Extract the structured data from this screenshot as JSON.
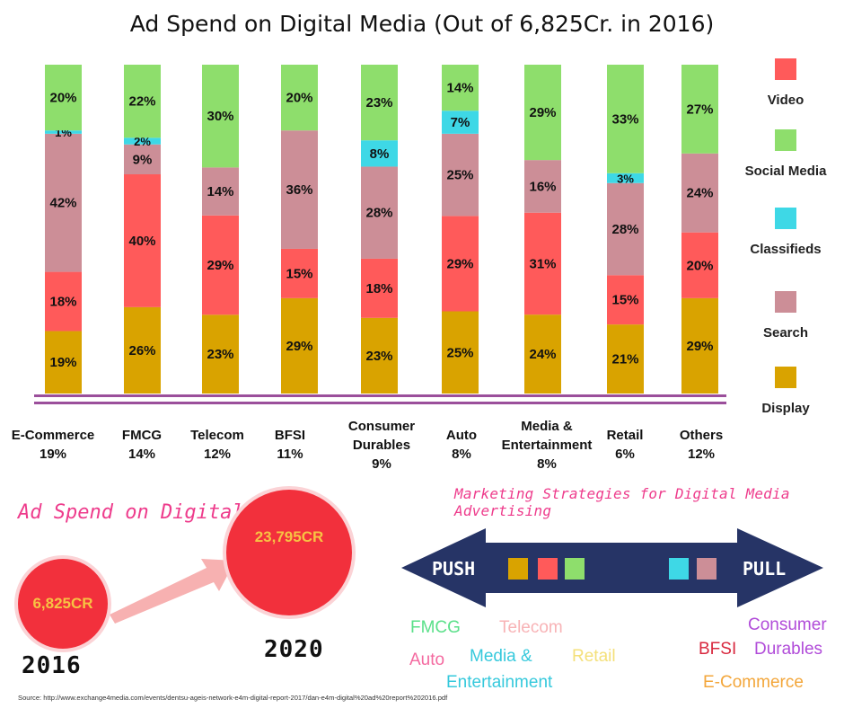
{
  "title": "Ad Spend on Digital Media (Out of 6,825Cr. in 2016)",
  "colors": {
    "Display": "#d9a300",
    "Video": "#ff5a5a",
    "Search": "#cc8e97",
    "Classifieds": "#3ed8e6",
    "Social Media": "#8ede6c",
    "baseline": "#9b4f9b",
    "arrow": "#263466",
    "circle": "#f2303c",
    "circle_text": "#f7c343",
    "pink_title": "#ee3c8c"
  },
  "legend": [
    {
      "label": "Video",
      "color": "#ff5a5a"
    },
    {
      "label": "Social Media",
      "color": "#8ede6c"
    },
    {
      "label": "Classifieds",
      "color": "#3ed8e6"
    },
    {
      "label": "Search",
      "color": "#cc8e97"
    },
    {
      "label": "Display",
      "color": "#d9a300"
    }
  ],
  "categories": [
    {
      "name": "E-Commerce",
      "share": "19%"
    },
    {
      "name": "FMCG",
      "share": "14%"
    },
    {
      "name": "Telecom",
      "share": "12%"
    },
    {
      "name": "BFSI",
      "share": "11%"
    },
    {
      "name": "Consumer Durables",
      "share": "9%"
    },
    {
      "name": "Auto",
      "share": "8%"
    },
    {
      "name": "Media & Entertainment",
      "share": "8%"
    },
    {
      "name": "Retail",
      "share": "6%"
    },
    {
      "name": "Others",
      "share": "12%"
    }
  ],
  "chart_data": {
    "type": "bar",
    "stacked": true,
    "title": "Ad Spend on Digital Media (Out of 6,825Cr. in 2016)",
    "categories": [
      "E-Commerce",
      "FMCG",
      "Telecom",
      "BFSI",
      "Consumer Durables",
      "Auto",
      "Media & Entertainment",
      "Retail",
      "Others"
    ],
    "series": [
      {
        "name": "Display",
        "values": [
          19,
          26,
          23,
          29,
          23,
          25,
          24,
          21,
          29
        ]
      },
      {
        "name": "Video",
        "values": [
          18,
          40,
          29,
          15,
          18,
          29,
          31,
          15,
          20
        ]
      },
      {
        "name": "Search",
        "values": [
          42,
          9,
          14,
          36,
          28,
          25,
          16,
          28,
          24
        ]
      },
      {
        "name": "Classifieds",
        "values": [
          1,
          2,
          0,
          0,
          8,
          7,
          0,
          3,
          0
        ]
      },
      {
        "name": "Social Media",
        "values": [
          20,
          22,
          30,
          20,
          23,
          14,
          29,
          33,
          27
        ]
      }
    ],
    "ylim": [
      0,
      100
    ],
    "value_suffix": "%",
    "legend_position": "right"
  },
  "growth": {
    "title": "Ad Spend on Digital Media",
    "value_2016": "6,825CR",
    "value_2020": "23,795CR",
    "year_2016": "2016",
    "year_2020": "2020"
  },
  "strategies": {
    "title": "Marketing Strategies for Digital Media Advertising",
    "push_label": "PUSH",
    "pull_label": "PULL",
    "push_colors": [
      "#d9a300",
      "#ff5a5a",
      "#8ede6c"
    ],
    "pull_colors": [
      "#3ed8e6",
      "#cc8e97"
    ],
    "push_industries": [
      {
        "label": "FMCG",
        "color": "#5be08a"
      },
      {
        "label": "Telecom",
        "color": "#f8b3b6"
      },
      {
        "label": "Auto",
        "color": "#f46aa0"
      },
      {
        "label": "Media &",
        "color": "#36c9dc"
      },
      {
        "label": "Retail",
        "color": "#f4e07a"
      },
      {
        "label": "Entertainment",
        "color": "#36c9dc"
      }
    ],
    "pull_industries": [
      {
        "label": "Consumer",
        "color": "#b14cd9"
      },
      {
        "label": "BFSI",
        "color": "#d8283e"
      },
      {
        "label": "Durables",
        "color": "#b14cd9"
      },
      {
        "label": "E-Commerce",
        "color": "#f3a63a"
      }
    ]
  },
  "source": "Source: http://www.exchange4media.com/events/dentsu-ageis-network-e4m-digital-report-2017/dan-e4m-digital%20ad%20report%202016.pdf"
}
